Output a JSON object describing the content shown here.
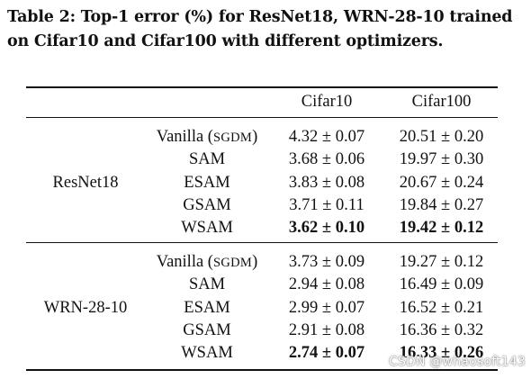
{
  "caption": "Table 2: Top-1 error (%) for ResNet18, WRN-28-10 trained on Cifar10 and Cifar100 with different optimizers.",
  "columns": [
    "",
    "",
    "Cifar10",
    "Cifar100"
  ],
  "groups": [
    {
      "model": "ResNet18",
      "rows": [
        {
          "optimizer": "Vanilla (",
          "optimizer_sc": "SGDM",
          "optimizer_end": ")",
          "cifar10": "4.32 ± 0.07",
          "cifar100": "20.51 ± 0.20",
          "best": false
        },
        {
          "optimizer": "SAM",
          "cifar10": "3.68 ± 0.06",
          "cifar100": "19.97 ± 0.30",
          "best": false
        },
        {
          "optimizer": "ESAM",
          "cifar10": "3.83 ± 0.08",
          "cifar100": "20.67 ± 0.24",
          "best": false
        },
        {
          "optimizer": "GSAM",
          "cifar10": "3.71 ± 0.11",
          "cifar100": "19.84 ± 0.27",
          "best": false
        },
        {
          "optimizer": "WSAM",
          "cifar10": "3.62 ± 0.10",
          "cifar100": "19.42 ± 0.12",
          "best": true
        }
      ]
    },
    {
      "model": "WRN-28-10",
      "rows": [
        {
          "optimizer": "Vanilla (",
          "optimizer_sc": "SGDM",
          "optimizer_end": ")",
          "cifar10": "3.73 ± 0.09",
          "cifar100": "19.27 ± 0.12",
          "best": false
        },
        {
          "optimizer": "SAM",
          "cifar10": "2.94 ± 0.08",
          "cifar100": "16.49 ± 0.09",
          "best": false
        },
        {
          "optimizer": "ESAM",
          "cifar10": "2.99 ± 0.07",
          "cifar100": "16.52 ± 0.21",
          "best": false
        },
        {
          "optimizer": "GSAM",
          "cifar10": "2.91 ± 0.08",
          "cifar100": "16.36 ± 0.32",
          "best": false
        },
        {
          "optimizer": "WSAM",
          "cifar10": "2.74 ± 0.07",
          "cifar100": "16.33 ± 0.26",
          "best": true
        }
      ]
    }
  ],
  "watermark": "CSDN @whaosoft143"
}
